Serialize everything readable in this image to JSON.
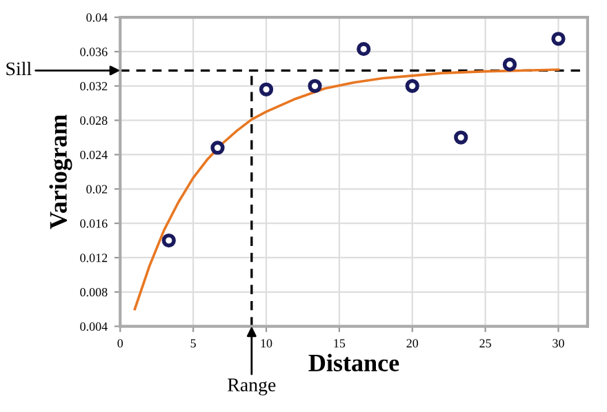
{
  "chart_data": {
    "type": "scatter",
    "xlabel": "Distance",
    "ylabel": "Variogram",
    "series": [
      {
        "color": "#1a1a5e",
        "marker": "circle",
        "x": [
          3.33,
          6.67,
          10,
          13.33,
          16.67,
          20,
          23.33,
          26.67,
          30
        ],
        "values": [
          0.014,
          0.0248,
          0.0316,
          0.032,
          0.0363,
          0.032,
          0.026,
          0.0345,
          0.0375
        ]
      },
      {
        "type": "line",
        "color": "#e87722",
        "marker": "none",
        "line_style": "solid",
        "x": [
          1,
          2,
          3,
          4,
          5,
          6,
          7,
          8,
          9,
          10,
          12,
          14,
          16,
          18,
          20,
          22,
          25,
          30
        ],
        "values": [
          0.006,
          0.011,
          0.0152,
          0.0185,
          0.0213,
          0.0235,
          0.0253,
          0.0268,
          0.0281,
          0.029,
          0.0305,
          0.0317,
          0.0324,
          0.0329,
          0.0332,
          0.0335,
          0.0337,
          0.0339
        ]
      }
    ],
    "ref_lines": [
      {
        "axis": "y",
        "value": 0.0338,
        "label": "Sill",
        "color": "#000000",
        "line_style": "dashed"
      },
      {
        "axis": "x",
        "value": 9,
        "label": "Range",
        "color": "#000000",
        "line_style": "dashed"
      }
    ],
    "xlim": [
      0,
      32
    ],
    "xticks": [
      0,
      5,
      10,
      15,
      20,
      25,
      30
    ],
    "ylim": [
      0.004,
      0.04
    ],
    "yticks": [
      0.004,
      0.008,
      0.012,
      0.016,
      0.02,
      0.024,
      0.028,
      0.032,
      0.036,
      0.04
    ],
    "grid": true
  }
}
